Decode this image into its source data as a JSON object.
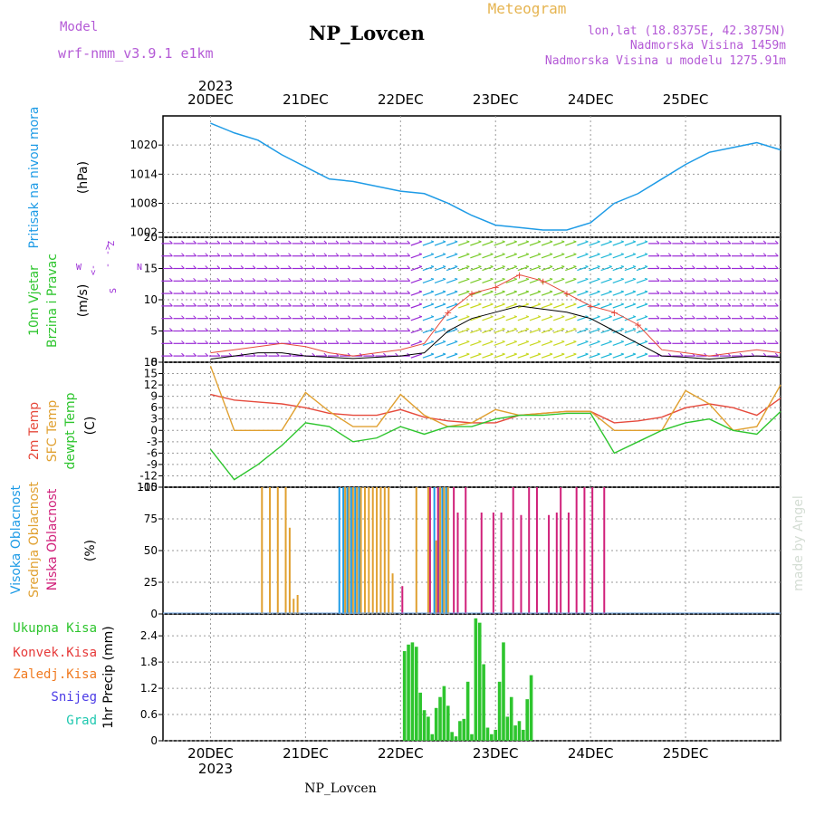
{
  "header": {
    "model_label": "Model",
    "model_name": "wrf-nmm_v3.9.1 e1km",
    "station": "NP_Lovcen",
    "meteogram": "Meteogram",
    "lonlat": "lon,lat (18.8375E, 42.3875N)",
    "altitude": "Nadmorska Visina 1459m",
    "model_altitude": "Nadmorska Visina u modelu 1275.91m"
  },
  "axis": {
    "year": "2023",
    "days": [
      "20DEC",
      "21DEC",
      "22DEC",
      "23DEC",
      "24DEC",
      "25DEC"
    ],
    "footer": "NP_Lovcen",
    "credit": "made by Angel"
  },
  "colors": {
    "pressure": "#1e9be6",
    "temp2m": "#e64a3c",
    "sfc": "#e0a030",
    "dew": "#2ec52e",
    "high_cloud": "#1e9be6",
    "mid_cloud": "#e0a030",
    "low_cloud": "#d0207a",
    "precip_total": "#2ec52e",
    "precip_conv": "#e63a3a",
    "freezing": "#f07a20",
    "snow": "#4a3ae6",
    "hail": "#20c8b0",
    "wind_mag": "#9a2ad6"
  },
  "chart_data": [
    {
      "type": "line",
      "id": "pressure",
      "ylabel": [
        "Pritisak na nivou mora",
        "(hPa)"
      ],
      "ylim": [
        1001,
        1026
      ],
      "yticks": [
        1002,
        1008,
        1014,
        1020
      ],
      "x_hours": [
        0,
        6,
        12,
        18,
        24,
        30,
        36,
        42,
        48,
        54,
        60,
        66,
        72,
        78,
        84,
        90,
        96,
        102,
        108,
        114,
        120,
        126,
        132,
        138,
        144
      ],
      "series": [
        {
          "values": [
            1024.5,
            1022.5,
            1021.0,
            1018.0,
            1015.5,
            1013.0,
            1012.5,
            1011.5,
            1010.5,
            1010.0,
            1008.0,
            1005.5,
            1003.5,
            1003.0,
            1002.5,
            1002.5,
            1004.0,
            1008.0,
            1010.0,
            1013.0,
            1016.0,
            1018.5,
            1019.5,
            1020.5,
            1019.0
          ]
        }
      ]
    },
    {
      "type": "line",
      "id": "wind",
      "ylabel": [
        "10m Vjetar",
        "Brzina i Pravac",
        "(m/s)"
      ],
      "direction_labels": [
        "W",
        "<-",
        "-",
        "->",
        "Z"
      ],
      "direction_labels2": [
        "S",
        "N"
      ],
      "ylim": [
        0,
        20
      ],
      "yticks": [
        0,
        5,
        10,
        15,
        20
      ],
      "x_hours": [
        0,
        6,
        12,
        18,
        24,
        30,
        36,
        42,
        48,
        54,
        60,
        66,
        72,
        78,
        84,
        90,
        96,
        102,
        108,
        114,
        120,
        126,
        132,
        138,
        144
      ],
      "series": [
        {
          "name": "gust",
          "values": [
            1.5,
            2,
            2.5,
            3,
            2.5,
            1.5,
            1,
            1.5,
            2,
            3,
            8,
            11,
            12,
            14,
            13,
            11,
            9,
            8,
            6,
            2,
            1.5,
            1,
            1.5,
            2,
            1.5
          ]
        },
        {
          "name": "mean",
          "values": [
            0.5,
            1,
            1.5,
            1.5,
            1,
            0.8,
            0.6,
            0.8,
            1,
            1.5,
            5,
            7,
            8,
            9,
            8.5,
            8,
            7,
            5,
            3,
            1,
            0.8,
            0.5,
            0.8,
            1,
            0.8
          ]
        }
      ]
    },
    {
      "type": "line",
      "id": "temperature",
      "ylabel": [
        "2m Temp",
        "SFC Temp",
        "dewpt Temp",
        "(C)"
      ],
      "ylim": [
        -15,
        18
      ],
      "yticks": [
        -15,
        -12,
        -9,
        -6,
        -3,
        0,
        3,
        6,
        9,
        12,
        15,
        18
      ],
      "x_hours": [
        0,
        6,
        12,
        18,
        24,
        30,
        36,
        42,
        48,
        54,
        60,
        66,
        72,
        78,
        84,
        90,
        96,
        102,
        108,
        114,
        120,
        126,
        132,
        138,
        144
      ],
      "series": [
        {
          "name": "2m Temp",
          "values": [
            9.5,
            8,
            7.5,
            7,
            6,
            4.5,
            4,
            4,
            5.5,
            3.5,
            2.5,
            2,
            2,
            4,
            4.5,
            5,
            5,
            2,
            2.5,
            3.5,
            6,
            7,
            6,
            4,
            8.5
          ]
        },
        {
          "name": "SFC Temp",
          "values": [
            17,
            0,
            0,
            0,
            10,
            5,
            1,
            1,
            9.5,
            4,
            1,
            2,
            5.5,
            4,
            4.5,
            5,
            5,
            0,
            0,
            0,
            10.5,
            7,
            0,
            1,
            12
          ]
        },
        {
          "name": "dewpt Temp",
          "values": [
            -5,
            -13,
            -9,
            -4,
            2,
            1,
            -3,
            -2,
            1,
            -1,
            1,
            1,
            3,
            4,
            4,
            4.5,
            4.5,
            -6,
            -3,
            0,
            2,
            3,
            0,
            -1,
            5
          ]
        }
      ]
    },
    {
      "type": "bar",
      "id": "cloud",
      "ylabel": [
        "Visoka Oblacnost",
        "Srednja Oblacnost",
        "Niska Oblacnost",
        "(%)"
      ],
      "ylim": [
        0,
        100
      ],
      "yticks": [
        0,
        25,
        50,
        75,
        100
      ],
      "x_hours": [
        13,
        15,
        17,
        19,
        20,
        21,
        22,
        26,
        30,
        33,
        34,
        35,
        36,
        37,
        38,
        39,
        40,
        41,
        42,
        43,
        44,
        45,
        46,
        48,
        52,
        55,
        57,
        58,
        59,
        60,
        61,
        62,
        64,
        68,
        71,
        73,
        76,
        78,
        80,
        82,
        85,
        87,
        88,
        90,
        92,
        94,
        96,
        99
      ],
      "series": [
        {
          "name": "Visoka Oblacnost",
          "values": [
            0,
            0,
            0,
            0,
            0,
            0,
            0,
            0,
            0,
            100,
            100,
            100,
            100,
            100,
            100,
            0,
            0,
            0,
            0,
            0,
            0,
            0,
            0,
            0,
            0,
            0,
            100,
            100,
            100,
            100,
            0,
            0,
            0,
            0,
            0,
            0,
            0,
            0,
            0,
            0,
            0,
            0,
            0,
            0,
            0,
            0,
            0,
            0
          ]
        },
        {
          "name": "Srednja Oblacnost",
          "values": [
            100,
            100,
            100,
            100,
            68,
            12,
            15,
            0,
            0,
            0,
            100,
            100,
            100,
            100,
            100,
            100,
            100,
            100,
            100,
            100,
            100,
            100,
            32,
            0,
            100,
            100,
            58,
            100,
            100,
            100,
            0,
            0,
            0,
            0,
            0,
            0,
            0,
            0,
            0,
            0,
            0,
            0,
            0,
            0,
            0,
            0,
            0,
            0
          ]
        },
        {
          "name": "Niska Oblacnost",
          "values": [
            0,
            0,
            0,
            0,
            0,
            0,
            0,
            0,
            0,
            0,
            0,
            0,
            0,
            0,
            0,
            0,
            0,
            0,
            0,
            0,
            0,
            0,
            0,
            22,
            0,
            100,
            100,
            0,
            0,
            0,
            100,
            80,
            100,
            80,
            80,
            80,
            100,
            78,
            100,
            100,
            78,
            80,
            100,
            80,
            100,
            100,
            100,
            100
          ]
        }
      ]
    },
    {
      "type": "bar",
      "id": "precip",
      "ylabel": [
        "1hr Precip (mm)"
      ],
      "legend": [
        "Ukupna Kisa",
        "Konvek.Kisa",
        "Zaledj.Kisa",
        "Snijeg",
        "Grad"
      ],
      "ylim": [
        0,
        2.9
      ],
      "yticks": [
        0,
        0.6,
        1.2,
        1.8,
        2.4
      ],
      "x_hours": [
        49,
        50,
        51,
        52,
        53,
        54,
        55,
        56,
        57,
        58,
        59,
        60,
        61,
        62,
        63,
        64,
        65,
        66,
        67,
        68,
        69,
        70,
        71,
        72,
        73,
        74,
        75,
        76,
        77,
        78,
        79,
        80,
        81
      ],
      "series": [
        {
          "name": "Ukupna Kisa",
          "values": [
            2.05,
            2.2,
            2.25,
            2.15,
            1.1,
            0.7,
            0.55,
            0.15,
            0.75,
            1.0,
            1.25,
            0.8,
            0.2,
            0.1,
            0.45,
            0.5,
            1.35,
            0.15,
            2.8,
            2.7,
            1.75,
            0.3,
            0.15,
            0.25,
            1.35,
            2.25,
            0.55,
            1.0,
            0.35,
            0.45,
            0.25,
            0.95,
            1.5
          ]
        },
        {
          "name": "Konvek.Kisa",
          "values": [
            0,
            0,
            0,
            0,
            0,
            0,
            0,
            0,
            0,
            0,
            0,
            0,
            0,
            0,
            0,
            0,
            0,
            0,
            0,
            0,
            0,
            0,
            0,
            0,
            0,
            0,
            0,
            0,
            0,
            0,
            0,
            0,
            0
          ]
        }
      ]
    }
  ]
}
